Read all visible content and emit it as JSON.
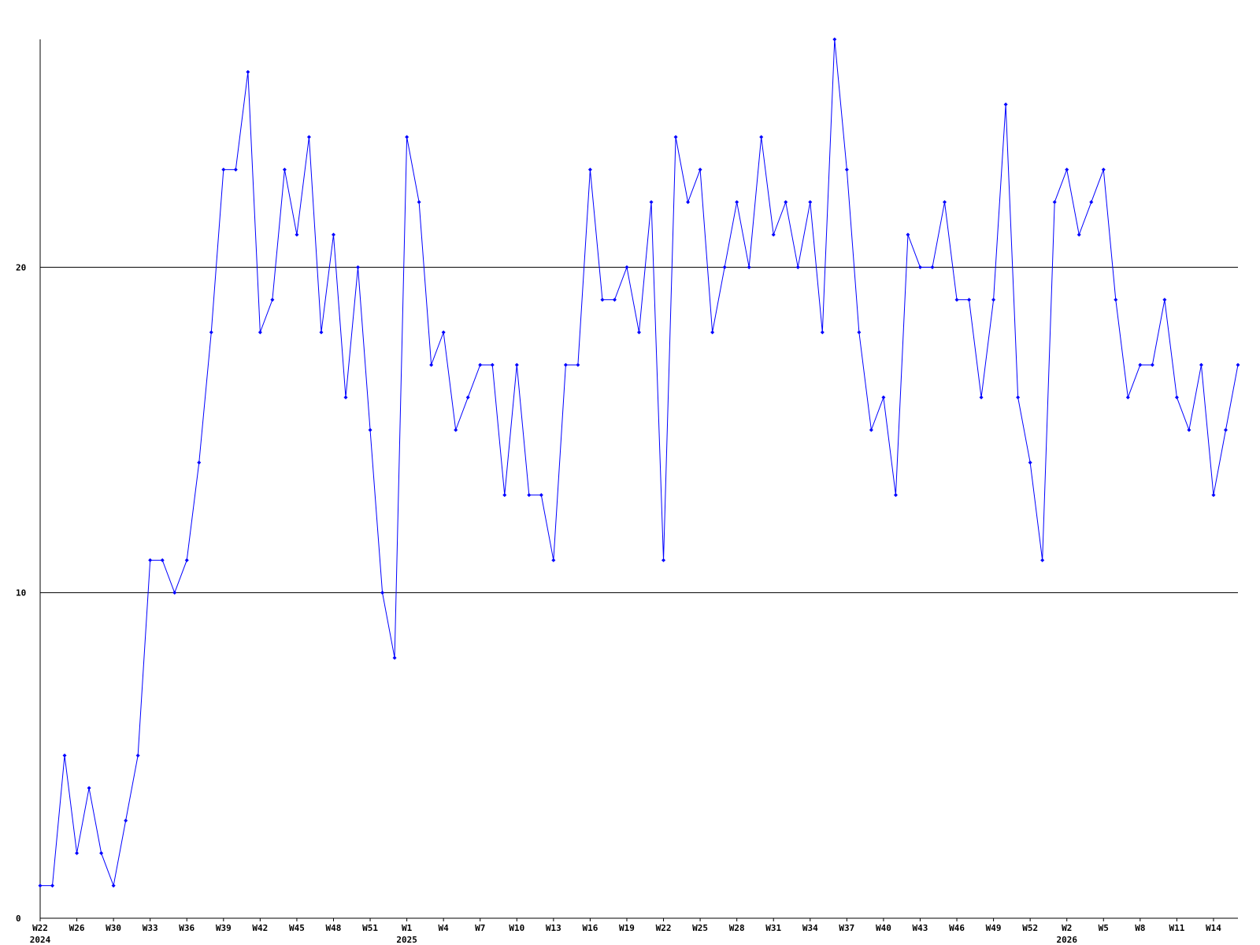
{
  "chart_data": {
    "type": "line",
    "categories": [
      "W22",
      null,
      null,
      "W26",
      null,
      null,
      "W30",
      null,
      null,
      "W33",
      null,
      null,
      "W36",
      null,
      null,
      "W39",
      null,
      null,
      "W42",
      null,
      null,
      "W45",
      null,
      null,
      "W48",
      null,
      null,
      "W51",
      null,
      null,
      "W1",
      null,
      null,
      "W4",
      null,
      null,
      "W7",
      null,
      null,
      "W10",
      null,
      null,
      "W13",
      null,
      null,
      "W16",
      null,
      null,
      "W19",
      null,
      null,
      "W22",
      null,
      null,
      "W25",
      null,
      null,
      "W28",
      null,
      null,
      "W31",
      null,
      null,
      "W34",
      null,
      null,
      "W37",
      null,
      null,
      "W40",
      null,
      null,
      "W43",
      null,
      null,
      "W46",
      null,
      null,
      "W49",
      null,
      null,
      "W52",
      null,
      null,
      "W2",
      null,
      null,
      "W5",
      null,
      null,
      "W8",
      null,
      null,
      "W11",
      null,
      null,
      "W14",
      null,
      null
    ],
    "category_years": [
      "2024",
      null,
      null,
      null,
      null,
      null,
      null,
      null,
      null,
      null,
      null,
      null,
      null,
      null,
      null,
      null,
      null,
      null,
      null,
      null,
      null,
      null,
      null,
      null,
      null,
      null,
      null,
      null,
      null,
      null,
      "2025",
      null,
      null,
      null,
      null,
      null,
      null,
      null,
      null,
      null,
      null,
      null,
      null,
      null,
      null,
      null,
      null,
      null,
      null,
      null,
      null,
      null,
      null,
      null,
      null,
      null,
      null,
      null,
      null,
      null,
      null,
      null,
      null,
      null,
      null,
      null,
      null,
      null,
      null,
      null,
      null,
      null,
      null,
      null,
      null,
      null,
      null,
      null,
      null,
      null,
      null,
      null,
      null,
      null,
      "2026",
      null,
      null,
      null,
      null,
      null,
      null,
      null,
      null,
      null,
      null,
      null,
      null,
      null,
      null
    ],
    "series": [
      {
        "color": "#0000ff",
        "values": [
          1,
          1,
          5,
          2,
          4,
          2,
          1,
          3,
          5,
          11,
          11,
          10,
          11,
          14,
          18,
          23,
          23,
          26,
          18,
          19,
          23,
          21,
          24,
          18,
          21,
          16,
          20,
          15,
          10,
          8,
          24,
          22,
          17,
          18,
          15,
          16,
          17,
          17,
          13,
          17,
          13,
          13,
          11,
          17,
          17,
          23,
          19,
          19,
          20,
          18,
          22,
          11,
          24,
          22,
          23,
          18,
          20,
          22,
          20,
          24,
          21,
          22,
          20,
          22,
          18,
          27,
          23,
          18,
          15,
          16,
          13,
          21,
          20,
          20,
          22,
          19,
          19,
          16,
          19,
          25,
          16,
          14,
          11,
          22,
          23,
          21,
          22,
          23,
          19,
          16,
          17,
          17,
          19,
          16,
          15,
          17,
          13,
          15,
          17
        ]
      }
    ],
    "ylim": [
      0,
      27
    ],
    "yticks": [
      0,
      10,
      20
    ],
    "grid": true
  }
}
